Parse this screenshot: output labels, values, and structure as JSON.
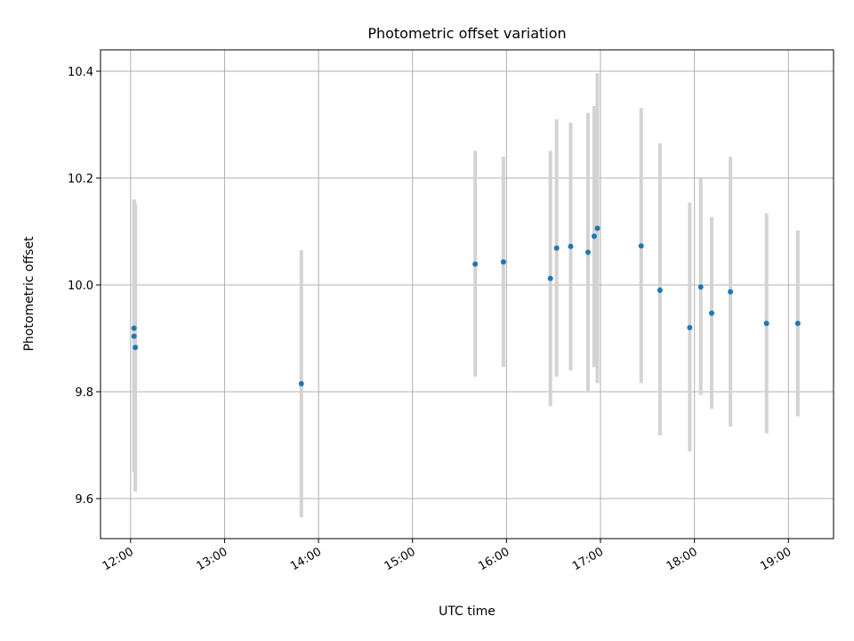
{
  "chart_data": {
    "type": "scatter",
    "title": "Photometric offset variation",
    "xlabel": "UTC time",
    "ylabel": "Photometric offset",
    "x_tick_labels": [
      "12:00",
      "13:00",
      "14:00",
      "15:00",
      "16:00",
      "17:00",
      "18:00",
      "19:00"
    ],
    "x_tick_hours": [
      12,
      13,
      14,
      15,
      16,
      17,
      18,
      19
    ],
    "y_ticks": [
      9.6,
      9.8,
      10.0,
      10.2,
      10.4
    ],
    "y_tick_labels": [
      "9.6",
      "9.8",
      "10.0",
      "10.2",
      "10.4"
    ],
    "xlim_hours": [
      11.68,
      19.48
    ],
    "ylim": [
      9.525,
      10.44
    ],
    "grid": true,
    "marker_color": "#1f77b4",
    "errorbar_color": "#d3d3d3",
    "points": [
      {
        "time": "12:02",
        "hour": 12.037,
        "y": 9.919,
        "err_low": 9.65,
        "err_high": 10.16
      },
      {
        "time": "12:02",
        "hour": 12.037,
        "y": 9.904,
        "err_low": 9.65,
        "err_high": 10.16
      },
      {
        "time": "12:03",
        "hour": 12.05,
        "y": 9.883,
        "err_low": 9.613,
        "err_high": 10.152
      },
      {
        "time": "13:49",
        "hour": 13.817,
        "y": 9.815,
        "err_low": 9.565,
        "err_high": 10.065
      },
      {
        "time": "15:40",
        "hour": 15.667,
        "y": 10.039,
        "err_low": 9.828,
        "err_high": 10.251
      },
      {
        "time": "15:58",
        "hour": 15.967,
        "y": 10.043,
        "err_low": 9.846,
        "err_high": 10.24
      },
      {
        "time": "16:28",
        "hour": 16.467,
        "y": 10.012,
        "err_low": 9.773,
        "err_high": 10.251
      },
      {
        "time": "16:32",
        "hour": 16.533,
        "y": 10.069,
        "err_low": 9.828,
        "err_high": 10.31
      },
      {
        "time": "16:41",
        "hour": 16.683,
        "y": 10.072,
        "err_low": 9.84,
        "err_high": 10.304
      },
      {
        "time": "16:52",
        "hour": 16.867,
        "y": 10.061,
        "err_low": 9.8,
        "err_high": 10.322
      },
      {
        "time": "16:56",
        "hour": 16.933,
        "y": 10.091,
        "err_low": 9.846,
        "err_high": 10.335
      },
      {
        "time": "16:58",
        "hour": 16.967,
        "y": 10.106,
        "err_low": 9.816,
        "err_high": 10.396
      },
      {
        "time": "17:26",
        "hour": 17.433,
        "y": 10.073,
        "err_low": 9.816,
        "err_high": 10.331
      },
      {
        "time": "17:38",
        "hour": 17.633,
        "y": 9.99,
        "err_low": 9.718,
        "err_high": 10.265
      },
      {
        "time": "17:57",
        "hour": 17.95,
        "y": 9.92,
        "err_low": 9.688,
        "err_high": 10.154
      },
      {
        "time": "18:04",
        "hour": 18.067,
        "y": 9.996,
        "err_low": 9.794,
        "err_high": 10.199
      },
      {
        "time": "18:11",
        "hour": 18.183,
        "y": 9.947,
        "err_low": 9.768,
        "err_high": 10.127
      },
      {
        "time": "18:23",
        "hour": 18.383,
        "y": 9.987,
        "err_low": 9.735,
        "err_high": 10.24
      },
      {
        "time": "18:46",
        "hour": 18.767,
        "y": 9.928,
        "err_low": 9.722,
        "err_high": 10.134
      },
      {
        "time": "19:06",
        "hour": 19.1,
        "y": 9.928,
        "err_low": 9.754,
        "err_high": 10.102
      }
    ]
  }
}
